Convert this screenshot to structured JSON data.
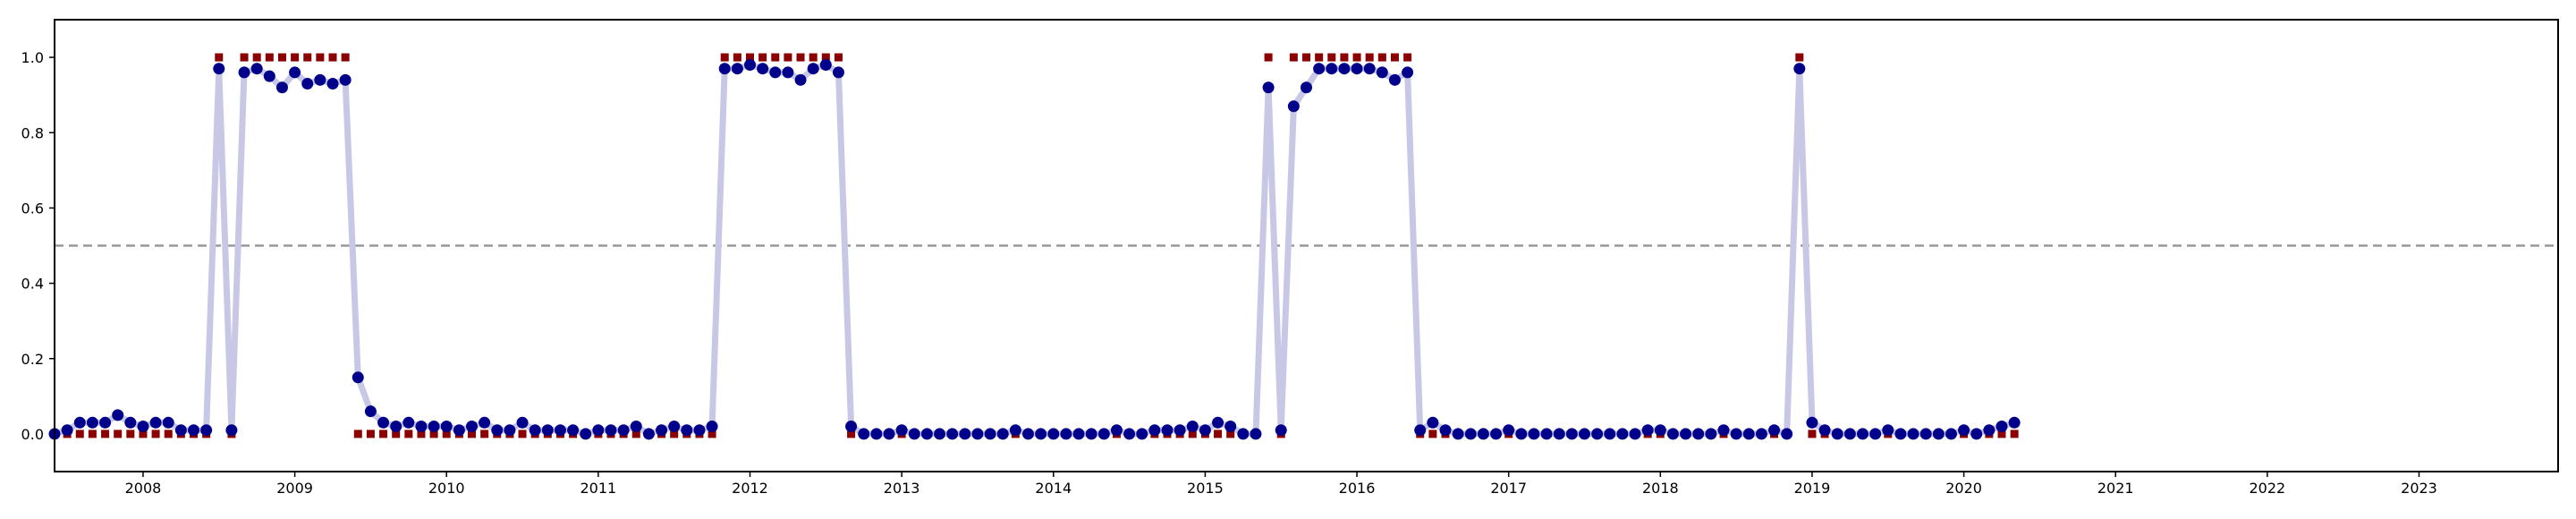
{
  "chart_data": {
    "type": "scatter",
    "title": "",
    "xlabel": "",
    "ylabel": "",
    "x_start": "2007-06",
    "xlim": [
      "2007-06",
      "2023-12"
    ],
    "ylim": [
      -0.1,
      1.1
    ],
    "x_ticks": [
      "2008",
      "2009",
      "2010",
      "2011",
      "2012",
      "2013",
      "2014",
      "2015",
      "2016",
      "2017",
      "2018",
      "2019",
      "2020",
      "2021",
      "2022",
      "2023"
    ],
    "y_ticks": [
      "0.0",
      "0.2",
      "0.4",
      "0.6",
      "0.8",
      "1.0"
    ],
    "threshold": 0.5,
    "grid": false,
    "series": [
      {
        "kind": "probability",
        "style": "line+markers",
        "values": [
          0.0,
          0.01,
          0.03,
          0.03,
          0.03,
          0.05,
          0.03,
          0.02,
          0.03,
          0.03,
          0.01,
          0.01,
          0.01,
          0.97,
          0.01,
          0.96,
          0.97,
          0.95,
          0.92,
          0.96,
          0.93,
          0.94,
          0.93,
          0.94,
          0.15,
          0.06,
          0.03,
          0.02,
          0.03,
          0.02,
          0.02,
          0.02,
          0.01,
          0.02,
          0.03,
          0.01,
          0.01,
          0.03,
          0.01,
          0.01,
          0.01,
          0.01,
          0.0,
          0.01,
          0.01,
          0.01,
          0.02,
          0.0,
          0.01,
          0.02,
          0.01,
          0.01,
          0.02,
          0.97,
          0.97,
          0.98,
          0.97,
          0.96,
          0.96,
          0.94,
          0.97,
          0.98,
          0.96,
          0.02,
          0.0,
          0.0,
          0.0,
          0.01,
          0.0,
          0.0,
          0.0,
          0.0,
          0.0,
          0.0,
          0.0,
          0.0,
          0.01,
          0.0,
          0.0,
          0.0,
          0.0,
          0.0,
          0.0,
          0.0,
          0.01,
          0.0,
          0.0,
          0.01,
          0.01,
          0.01,
          0.02,
          0.01,
          0.03,
          0.02,
          0.0,
          0.0,
          0.92,
          0.01,
          0.87,
          0.92,
          0.97,
          0.97,
          0.97,
          0.97,
          0.97,
          0.96,
          0.94,
          0.96,
          0.01,
          0.03,
          0.01,
          0.0,
          0.0,
          0.0,
          0.0,
          0.01,
          0.0,
          0.0,
          0.0,
          0.0,
          0.0,
          0.0,
          0.0,
          0.0,
          0.0,
          0.0,
          0.01,
          0.01,
          0.0,
          0.0,
          0.0,
          0.0,
          0.01,
          0.0,
          0.0,
          0.0,
          0.01,
          0.0,
          0.97,
          0.03,
          0.01,
          0.0,
          0.0,
          0.0,
          0.0,
          0.01,
          0.0,
          0.0,
          0.0,
          0.0,
          0.0,
          0.01,
          0.0,
          0.01,
          0.02,
          0.03
        ],
        "line_color": "#c8c8e6",
        "marker_color": "#00008b"
      },
      {
        "kind": "binary",
        "style": "square-markers",
        "values": [
          0,
          0,
          0,
          0,
          0,
          0,
          0,
          0,
          0,
          0,
          0,
          0,
          0,
          1,
          0,
          1,
          1,
          1,
          1,
          1,
          1,
          1,
          1,
          1,
          0,
          0,
          0,
          0,
          0,
          0,
          0,
          0,
          0,
          0,
          0,
          0,
          0,
          0,
          0,
          0,
          0,
          0,
          0,
          0,
          0,
          0,
          0,
          0,
          0,
          0,
          0,
          0,
          0,
          1,
          1,
          1,
          1,
          1,
          1,
          1,
          1,
          1,
          1,
          0,
          0,
          0,
          0,
          0,
          0,
          0,
          0,
          0,
          0,
          0,
          0,
          0,
          0,
          0,
          0,
          0,
          0,
          0,
          0,
          0,
          0,
          0,
          0,
          0,
          0,
          0,
          0,
          0,
          0,
          0,
          0,
          0,
          1,
          0,
          1,
          1,
          1,
          1,
          1,
          1,
          1,
          1,
          1,
          1,
          0,
          0,
          0,
          0,
          0,
          0,
          0,
          0,
          0,
          0,
          0,
          0,
          0,
          0,
          0,
          0,
          0,
          0,
          0,
          0,
          0,
          0,
          0,
          0,
          0,
          0,
          0,
          0,
          0,
          0,
          1,
          0,
          0,
          0,
          0,
          0,
          0,
          0,
          0,
          0,
          0,
          0,
          0,
          0,
          0,
          0,
          0,
          0
        ],
        "marker_color": "#8b0000"
      }
    ],
    "threshold_color": "#999999",
    "axis_color": "#000000"
  }
}
